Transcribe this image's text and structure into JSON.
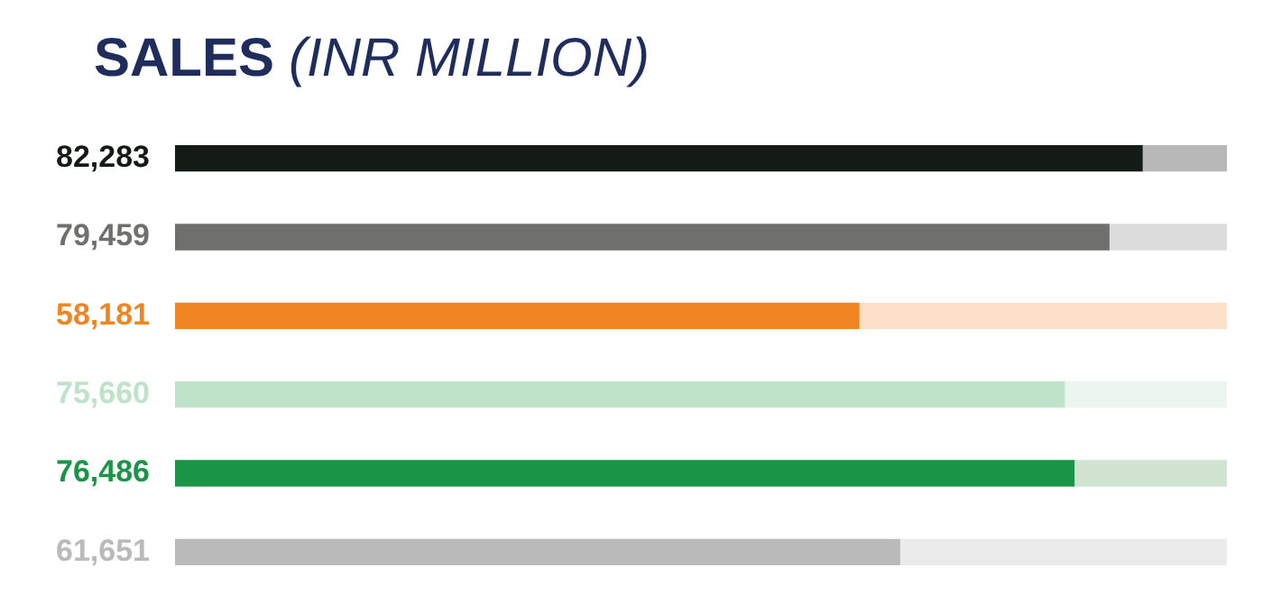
{
  "chart_data": {
    "type": "bar",
    "title": "SALES",
    "subtitle": "(INR MILLION)",
    "orientation": "horizontal",
    "stacked": true,
    "categories": [
      null,
      null,
      null,
      null,
      null,
      null
    ],
    "series": [
      {
        "colors": [
          "#141a16",
          "#6f706e",
          "#f08522",
          "#bfe3c8",
          "#1a9447",
          "#bababa"
        ],
        "values": [
          82283,
          79459,
          58181,
          75660,
          76486,
          61651
        ],
        "value_labels": [
          "82,283",
          "79,459",
          "58,181",
          "75,660",
          "76,486",
          "61,651"
        ]
      },
      {
        "colors": [
          "#b8b8b8",
          "#dcdcdc",
          "#fde0c8",
          "#eaf6ee",
          "#cfe3d0",
          "#ebebeb"
        ],
        "values": [
          7217,
          10041,
          31319,
          13840,
          13014,
          27849
        ]
      }
    ]
  }
}
